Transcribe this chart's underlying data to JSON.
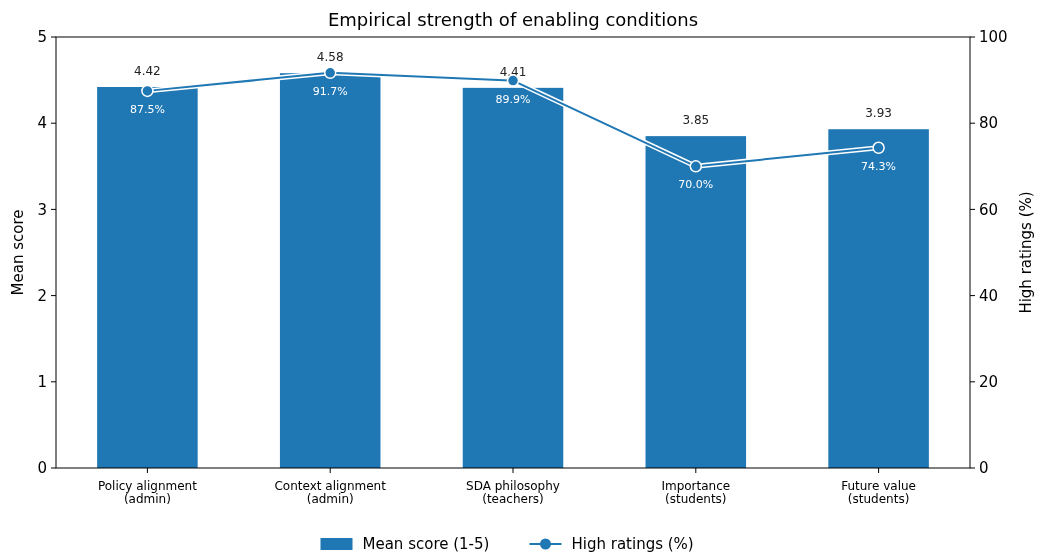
{
  "chart_data": {
    "type": "bar",
    "title": "Empirical strength of enabling conditions",
    "ylabel": "Mean score",
    "y2label": "High ratings (%)",
    "categories": [
      "Policy alignment\n(admin)",
      "Context alignment\n(admin)",
      "SDA philosophy\n(teachers)",
      "Importance\n(students)",
      "Future value\n(students)"
    ],
    "series": [
      {
        "name": "Mean score (1-5)",
        "color": "#1f77b4",
        "values": [
          4.42,
          4.58,
          4.41,
          3.85,
          3.93
        ],
        "data_labels": true
      },
      {
        "name": "High ratings (%)",
        "type": "line",
        "axis": "y2",
        "color": "#1f77b4",
        "marker": "circle",
        "values": [
          87.5,
          91.7,
          89.9,
          70.0,
          74.3
        ],
        "value_labels": [
          "87.5%",
          "91.7%",
          "89.9%",
          "70.0%",
          "74.3%"
        ]
      }
    ],
    "ylim": [
      0,
      5
    ],
    "yticks": [
      0,
      1,
      2,
      3,
      4,
      5
    ],
    "y2lim": [
      0,
      100
    ],
    "y2ticks": [
      0,
      20,
      40,
      60,
      80,
      100
    ],
    "legend": "bottom",
    "grid": false
  }
}
